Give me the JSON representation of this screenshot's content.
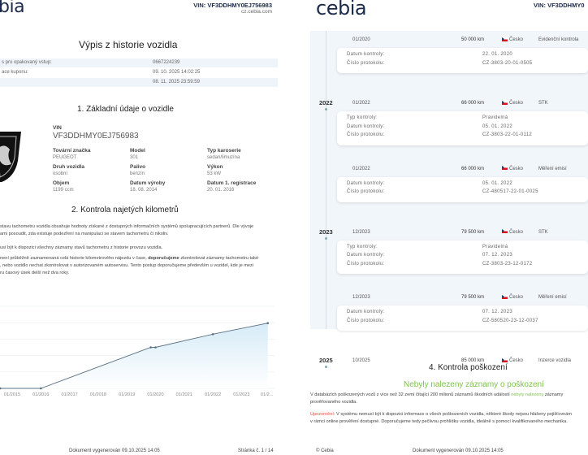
{
  "left_page": {
    "logo": "bia",
    "vin_header": "VIN: VF3DDHMY0EJ756983",
    "site": "cz.cebia.com",
    "title": "Výpis z historie vozidla",
    "info_rows": [
      {
        "label": "s pro opakovaný vstup:",
        "value": "0667224239"
      },
      {
        "label": "ace kuponu:",
        "value": "09. 10. 2025 14:02:25"
      },
      {
        "label": "",
        "value": "08. 11. 2025 23:59:59"
      }
    ],
    "section1": {
      "title": "1. Základní údaje o vozidle",
      "brand_logo_text": "PEUGEOT",
      "vin_label": "VIN",
      "vin_value": "VF3DDHMY0EJ756983",
      "fields": [
        {
          "label": "Tovární značka",
          "value": "PEUGEOT"
        },
        {
          "label": "Model",
          "value": "301"
        },
        {
          "label": "Typ karoserie",
          "value": "sedan/limuzína"
        },
        {
          "label": "Druh vozidla",
          "value": "osobní"
        },
        {
          "label": "Palivo",
          "value": "benzín"
        },
        {
          "label": "Výkon",
          "value": "53 kW"
        },
        {
          "label": "Objem",
          "value": "1199 ccm"
        },
        {
          "label": "Datum výroby",
          "value": "18. 08. 2014"
        },
        {
          "label": "Datum 1. registrace",
          "value": "20. 01. 2016"
        }
      ]
    },
    "section2": {
      "title": "2. Kontrola najetých kilometrů",
      "p1": "stavu tachometru vozidla obsahuje hodnoty získané z dostupných informačních systémů spolupracujících partnerů. Dle vývoje",
      "p1b": "ami posoudit, zda existuje podezření na manipulaci se stavem tachometru či nikoliv.",
      "p2": "usí být k dispozici všechny záznamy stavů tachometru z historie provozu vozidla.",
      "p3a": " není průběžně zaznamenaná celá historie kilometrového nájezdu v čase, ",
      "p3bold": "doporučujeme",
      "p3b": " zkontrolovat záznamy tachometru také",
      "p3c": ", nebo vozidlo nechat zkontrolovat v autorizovaném autoservisu. Tento postup doporučujeme především u vozidel, kde je mezi",
      "p3d": "ru časový úsek delší než dva roky."
    },
    "footer": {
      "generated": "Dokument vygenerován 09.10.2025 14:05",
      "page": "Stránka č. 1 / 14"
    }
  },
  "chart_data": {
    "type": "area",
    "x_tick_labels": [
      "01/2015",
      "01/2016",
      "01/2017",
      "01/2018",
      "01/2019",
      "01/2020",
      "01/2021",
      "01/2022",
      "01/2023",
      "01/2..."
    ],
    "x": [
      "2014-08",
      "2016-01",
      "2019-11",
      "2020-01",
      "2022-01",
      "2023-12"
    ],
    "y": [
      0,
      0,
      50000,
      50000,
      66000,
      79500
    ],
    "ylim": [
      0,
      100000
    ],
    "grid": true,
    "color": "#5a7184",
    "fill": "#d6ebf7"
  },
  "right_page": {
    "logo": "cebia",
    "vin_header": "VIN: VF3DDHMY0",
    "timeline": [
      {
        "year": "",
        "date": "01/2020",
        "km": "50 000 km",
        "country": "Česko",
        "type": "Evidenční kontrola",
        "details": [
          [
            "Datum kontroly:",
            "22. 01. 2020"
          ],
          [
            "Číslo protokolu:",
            "CZ-3803-20-01-0505"
          ]
        ]
      },
      {
        "year": "2022",
        "date": "01/2022",
        "km": "66 000 km",
        "country": "Česko",
        "type": "STK",
        "details": [
          [
            "Typ kontroly:",
            "Pravidelná"
          ],
          [
            "Datum kontroly:",
            "05. 01. 2022"
          ],
          [
            "Číslo protokolu:",
            "CZ-3803-22-01-0112"
          ]
        ]
      },
      {
        "year": "",
        "date": "01/2022",
        "km": "66 000 km",
        "country": "Česko",
        "type": "Měření emisí",
        "details": [
          [
            "Datum kontroly:",
            "05. 01. 2022"
          ],
          [
            "Číslo protokolu:",
            "CZ-480517-22-01-0025"
          ]
        ]
      },
      {
        "year": "2023",
        "date": "12/2023",
        "km": "79 500 km",
        "country": "Česko",
        "type": "STK",
        "details": [
          [
            "Typ kontroly:",
            "Pravidelná"
          ],
          [
            "Datum kontroly:",
            "07. 12. 2023"
          ],
          [
            "Číslo protokolu:",
            "CZ-3803-23-12-0172"
          ]
        ]
      },
      {
        "year": "",
        "date": "12/2023",
        "km": "79 500 km",
        "country": "Česko",
        "type": "Měření emisí",
        "details": [
          [
            "Datum kontroly:",
            "07. 12. 2023"
          ],
          [
            "Číslo protokolu:",
            "CZ-580520-23-12-0037"
          ]
        ]
      },
      {
        "year": "2025",
        "date": "10/2025",
        "km": "85 000 km",
        "country": "Česko",
        "type": "Inzerce vozidla",
        "details": []
      }
    ],
    "section4": {
      "title": "4. Kontrola poškození",
      "result": "Nebyly nalezeny záznamy o poškození",
      "p1a": "V databázích poškozených vozů z více než 32 zemí čítající 200 milionů záznamů škodních událostí ",
      "p1green": "nebyly nalezeny",
      "p1b": " záznamy",
      "p1c": "prověřovaného vozidla.",
      "warn_label": "Upozornění:",
      "warn_a": " V systému nemusí být k dispozici informace o všech poškozeních vozidla, některé škody nejsou hlášeny pojišťovnám",
      "warn_b": "v rámci online prověření dostupné. Doporučujeme tedy pečlivou prohlídku vozidla, ideálně s pomocí kvalifikovaného mechanika."
    },
    "footer": {
      "copyright": "© Cebia",
      "generated": "Dokument vygenerován 09.10.2025 14:05"
    }
  },
  "colors": {
    "green": "#7dc24b",
    "warning": "#e8503a",
    "navy": "#1b2a4a"
  }
}
